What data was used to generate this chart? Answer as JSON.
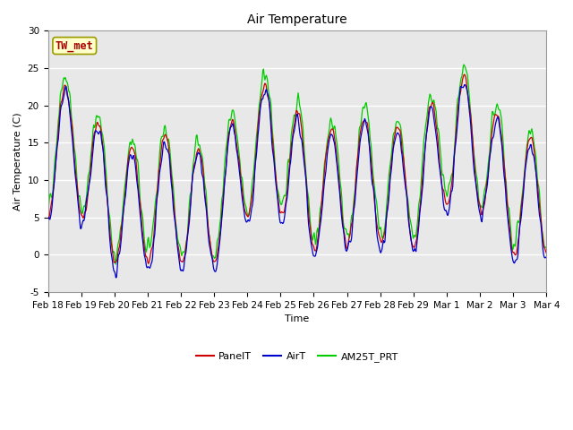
{
  "title": "Air Temperature",
  "ylabel": "Air Temperature (C)",
  "xlabel": "Time",
  "annotation": "TW_met",
  "ylim": [
    -5,
    30
  ],
  "fig_facecolor": "#ffffff",
  "plot_bg_color": "#e8e8e8",
  "grid_color": "#ffffff",
  "series_colors": {
    "PanelT": "#cc0000",
    "AirT": "#0000cc",
    "AM25T_PRT": "#00cc00"
  },
  "xtick_labels": [
    "Feb 18",
    "Feb 19",
    "Feb 20",
    "Feb 21",
    "Feb 22",
    "Feb 23",
    "Feb 24",
    "Feb 25",
    "Feb 26",
    "Feb 27",
    "Feb 28",
    "Feb 29",
    "Mar 1",
    "Mar 2",
    "Mar 3",
    "Mar 4"
  ],
  "ytick_values": [
    -5,
    0,
    5,
    10,
    15,
    20,
    25,
    30
  ],
  "legend_labels": [
    "PanelT",
    "AirT",
    "AM25T_PRT"
  ],
  "title_fontsize": 10,
  "label_fontsize": 8,
  "tick_fontsize": 7.5,
  "legend_fontsize": 8,
  "linewidth": 0.9,
  "n_days": 15,
  "n_points_per_day": 48
}
